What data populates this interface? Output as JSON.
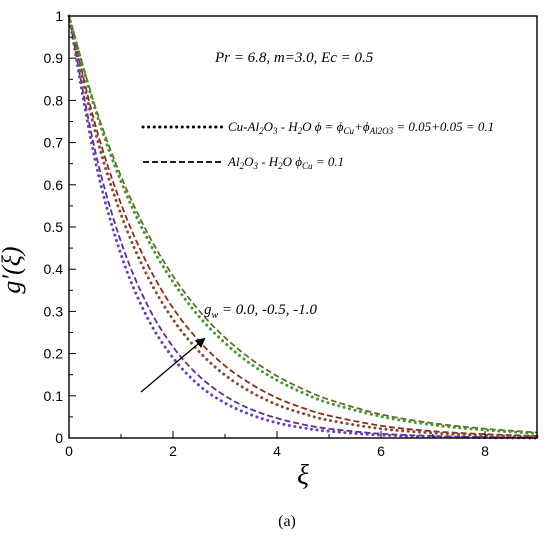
{
  "chart_data": {
    "type": "line",
    "xlabel": "ξ",
    "ylabel": "g′(ξ)",
    "xlim": [
      0,
      9
    ],
    "ylim": [
      0,
      1
    ],
    "xticks": [
      "0",
      "2",
      "4",
      "6",
      "8"
    ],
    "yticks": [
      "0",
      "0.1",
      "0.2",
      "0.3",
      "0.4",
      "0.5",
      "0.6",
      "0.7",
      "0.8",
      "0.9",
      "1"
    ],
    "params_text": "Pr = 6.8, m=3.0, Ec = 0.5",
    "arrow_label": "0.0, -0.5, -1.0",
    "legend": [
      {
        "style": "dotted",
        "text": "Cu-Al₂O₃ - H₂O ϕ = ϕCu+ϕAl2O3 = 0.05+0.05 = 0.1"
      },
      {
        "style": "dashed",
        "text": "Al₂O₃ - H₂O ϕCu = 0.1"
      }
    ],
    "caption": "(a)",
    "series": [
      {
        "line": "dashed",
        "color": "#5a2d9a",
        "x": [
          0,
          0.5,
          1,
          1.5,
          2,
          2.5,
          3,
          3.5,
          4,
          4.5,
          5,
          6,
          7,
          8,
          9
        ],
        "y": [
          1,
          0.682,
          0.465,
          0.317,
          0.216,
          0.147,
          0.1,
          0.068,
          0.047,
          0.032,
          0.022,
          0.01,
          0.005,
          0.002,
          0.001
        ]
      },
      {
        "line": "dotted",
        "color": "#6a3fc8",
        "x": [
          0,
          0.5,
          1,
          1.5,
          2,
          2.5,
          3,
          3.5,
          4,
          4.5,
          5,
          6,
          7,
          8,
          9
        ],
        "y": [
          1,
          0.66,
          0.435,
          0.287,
          0.19,
          0.125,
          0.083,
          0.055,
          0.036,
          0.024,
          0.016,
          0.007,
          0.003,
          0.001,
          0.0
        ]
      },
      {
        "line": "dashed",
        "color": "#8b2e1f",
        "x": [
          0,
          0.5,
          1,
          1.5,
          2,
          2.5,
          3,
          3.5,
          4,
          4.5,
          5,
          6,
          7,
          8,
          9
        ],
        "y": [
          1,
          0.745,
          0.555,
          0.414,
          0.308,
          0.23,
          0.171,
          0.128,
          0.095,
          0.071,
          0.053,
          0.029,
          0.016,
          0.009,
          0.005
        ]
      },
      {
        "line": "dotted",
        "color": "#8b4a2e",
        "x": [
          0,
          0.5,
          1,
          1.5,
          2,
          2.5,
          3,
          3.5,
          4,
          4.5,
          5,
          6,
          7,
          8,
          9
        ],
        "y": [
          1,
          0.728,
          0.53,
          0.386,
          0.281,
          0.205,
          0.149,
          0.109,
          0.079,
          0.058,
          0.042,
          0.022,
          0.012,
          0.006,
          0.003
        ]
      },
      {
        "line": "dashed",
        "color": "#6b6a2a",
        "x": [
          0,
          0.5,
          1,
          1.5,
          2,
          2.5,
          3,
          3.5,
          4,
          4.5,
          5,
          6,
          7,
          8,
          9
        ],
        "y": [
          1,
          0.787,
          0.62,
          0.488,
          0.384,
          0.302,
          0.238,
          0.187,
          0.147,
          0.116,
          0.091,
          0.056,
          0.035,
          0.022,
          0.013
        ]
      },
      {
        "line": "dotted",
        "color": "#3f9a2a",
        "x": [
          0,
          0.5,
          1,
          1.5,
          2,
          2.5,
          3,
          3.5,
          4,
          4.5,
          5,
          6,
          7,
          8,
          9
        ],
        "y": [
          1,
          0.78,
          0.608,
          0.474,
          0.37,
          0.288,
          0.225,
          0.175,
          0.137,
          0.107,
          0.083,
          0.051,
          0.031,
          0.019,
          0.011
        ]
      }
    ]
  }
}
